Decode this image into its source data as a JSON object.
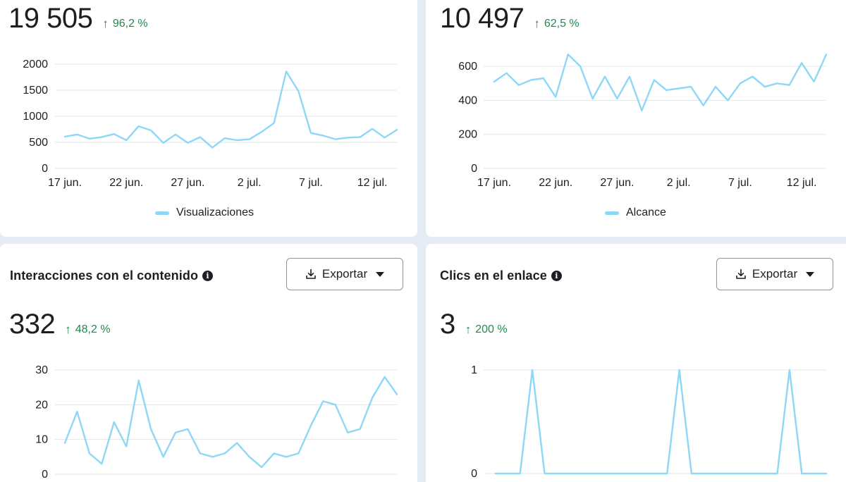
{
  "colors": {
    "line": "#8dd7f7",
    "grid": "#e3e6ea",
    "positive": "#1e8c4e"
  },
  "cards": [
    {
      "title": "",
      "metric": "19 505",
      "change": "96,2 %",
      "legend": "Visualizaciones",
      "export_label": ""
    },
    {
      "title": "",
      "metric": "10 497",
      "change": "62,5 %",
      "legend": "Alcance",
      "export_label": ""
    },
    {
      "title": "Interacciones con el contenido",
      "metric": "332",
      "change": "48,2 %",
      "legend": "",
      "export_label": "Exportar"
    },
    {
      "title": "Clics en el enlace",
      "metric": "3",
      "change": "200 %",
      "legend": "",
      "export_label": "Exportar"
    }
  ],
  "chart_data": [
    {
      "type": "line",
      "series": [
        {
          "name": "Visualizaciones",
          "values": [
            610,
            650,
            570,
            600,
            660,
            540,
            810,
            730,
            490,
            650,
            490,
            600,
            400,
            580,
            540,
            560,
            700,
            870,
            1860,
            1480,
            680,
            630,
            560,
            590,
            600,
            760,
            590,
            740
          ]
        }
      ],
      "x_start_offset": 0,
      "x_ticks": [
        "17 jun.",
        "22 jun.",
        "27 jun.",
        "2 jul.",
        "7 jul.",
        "12 jul."
      ],
      "y_ticks": [
        "0",
        "500",
        "1000",
        "1500",
        "2000"
      ],
      "ylim": [
        0,
        2000
      ],
      "legend_position": "bottom"
    },
    {
      "type": "line",
      "series": [
        {
          "name": "Alcance",
          "values": [
            510,
            560,
            490,
            520,
            530,
            420,
            670,
            600,
            410,
            540,
            410,
            540,
            340,
            520,
            460,
            470,
            480,
            370,
            480,
            400,
            500,
            540,
            480,
            500,
            490,
            620,
            510,
            670
          ]
        }
      ],
      "x_ticks": [
        "17 jun.",
        "22 jun.",
        "27 jun.",
        "2 jul.",
        "7 jul.",
        "12 jul."
      ],
      "y_ticks": [
        "0",
        "200",
        "400",
        "600"
      ],
      "ylim": [
        0,
        700
      ],
      "legend_position": "bottom"
    },
    {
      "type": "line",
      "series": [
        {
          "values": [
            9,
            18,
            6,
            3,
            15,
            8,
            27,
            13,
            5,
            12,
            13,
            6,
            5,
            6,
            9,
            5,
            2,
            6,
            5,
            6,
            14,
            21,
            20,
            12,
            13,
            22,
            28,
            23
          ]
        }
      ],
      "x_ticks": [],
      "y_ticks": [
        "0",
        "10",
        "20",
        "30"
      ],
      "ylim": [
        0,
        30
      ]
    },
    {
      "type": "line",
      "series": [
        {
          "values": [
            0,
            0,
            0,
            1,
            0,
            0,
            0,
            0,
            0,
            0,
            0,
            0,
            0,
            0,
            0,
            1,
            0,
            0,
            0,
            0,
            0,
            0,
            0,
            0,
            1,
            0,
            0,
            0
          ]
        }
      ],
      "x_ticks": [],
      "y_ticks": [
        "0",
        "1"
      ],
      "ylim": [
        0,
        1
      ]
    }
  ]
}
